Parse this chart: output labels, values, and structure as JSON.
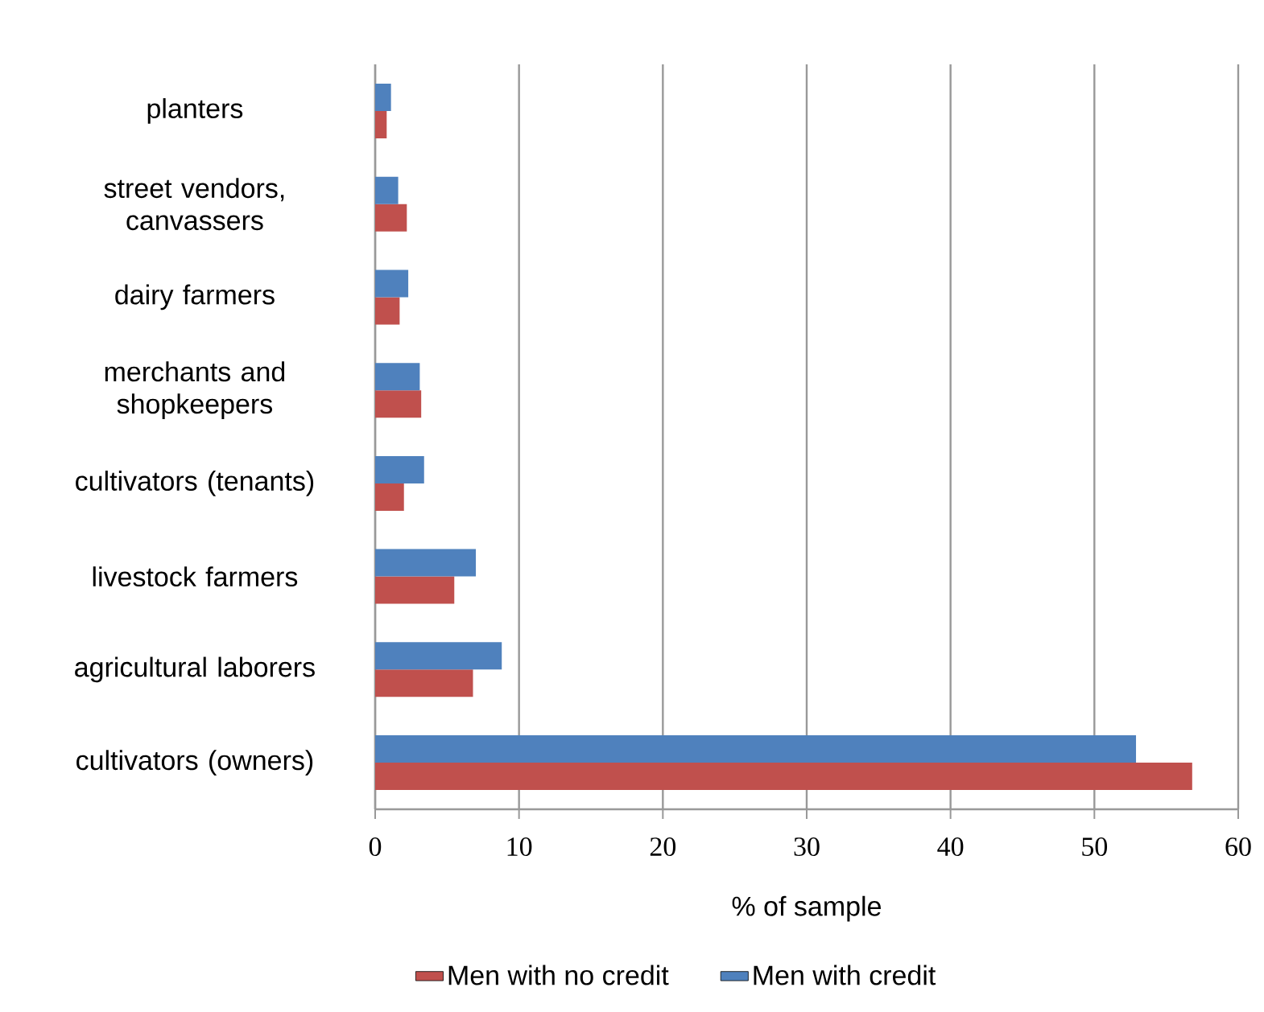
{
  "chart_data": {
    "type": "bar",
    "orientation": "horizontal",
    "xlabel": "% of sample",
    "categories": [
      "planters",
      "street vendors, canvassers",
      "dairy farmers",
      "merchants and shopkeepers",
      "cultivators (tenants)",
      "livestock farmers",
      "agricultural laborers",
      "cultivators (owners)"
    ],
    "series": [
      {
        "name": "Men with no credit",
        "color": "#c0504d",
        "values": [
          0.8,
          2.2,
          1.7,
          3.2,
          2.0,
          5.5,
          6.8,
          56.8
        ]
      },
      {
        "name": "Men with credit",
        "color": "#4f81bd",
        "values": [
          1.1,
          1.6,
          2.3,
          3.1,
          3.4,
          7.0,
          8.8,
          52.9
        ]
      }
    ],
    "xlim": [
      0,
      60
    ],
    "xticks": [
      0,
      10,
      20,
      30,
      40,
      50,
      60
    ],
    "grid": "x",
    "legend": "bottom"
  }
}
